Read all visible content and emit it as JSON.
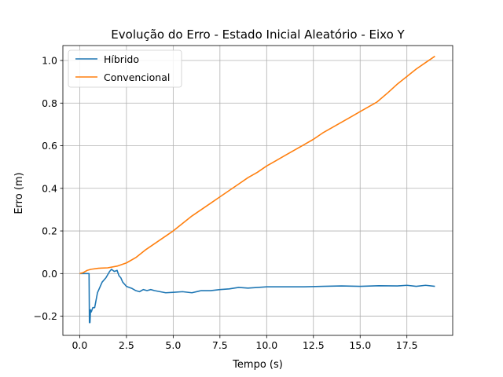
{
  "chart_data": {
    "type": "line",
    "title": "Evolução do Erro - Estado Inicial Aleatório - Eixo Y",
    "xlabel": "Tempo (s)",
    "ylabel": "Erro (m)",
    "xlim": [
      -0.9,
      19.95
    ],
    "ylim": [
      -0.29,
      1.07
    ],
    "xticks": [
      0.0,
      2.5,
      5.0,
      7.5,
      10.0,
      12.5,
      15.0,
      17.5
    ],
    "xtick_labels": [
      "0.0",
      "2.5",
      "5.0",
      "7.5",
      "10.0",
      "12.5",
      "15.0",
      "17.5"
    ],
    "yticks": [
      -0.2,
      0.0,
      0.2,
      0.4,
      0.6,
      0.8,
      1.0
    ],
    "ytick_labels": [
      "−0.2",
      "0.0",
      "0.2",
      "0.4",
      "0.6",
      "0.8",
      "1.0"
    ],
    "grid": true,
    "legend": "top-left",
    "series": [
      {
        "name": "Híbrido",
        "color": "#1f77b4",
        "x": [
          0.0,
          0.35,
          0.5,
          0.52,
          0.55,
          0.58,
          0.62,
          0.7,
          0.8,
          0.95,
          1.05,
          1.2,
          1.4,
          1.6,
          1.7,
          1.85,
          2.0,
          2.1,
          2.2,
          2.3,
          2.4,
          2.5,
          2.65,
          2.8,
          3.0,
          3.2,
          3.4,
          3.6,
          3.8,
          4.0,
          4.3,
          4.6,
          5.0,
          5.5,
          6.0,
          6.5,
          7.0,
          7.5,
          8.0,
          8.5,
          9.0,
          10.0,
          11.0,
          12.0,
          13.0,
          14.0,
          15.0,
          16.0,
          17.0,
          17.5,
          18.0,
          18.5,
          19.0
        ],
        "y": [
          0.0,
          0.0,
          0.0,
          -0.23,
          -0.23,
          -0.17,
          -0.18,
          -0.16,
          -0.16,
          -0.09,
          -0.07,
          -0.04,
          -0.02,
          0.01,
          0.02,
          0.01,
          0.015,
          -0.01,
          -0.02,
          -0.04,
          -0.05,
          -0.06,
          -0.065,
          -0.07,
          -0.08,
          -0.085,
          -0.075,
          -0.08,
          -0.075,
          -0.08,
          -0.085,
          -0.09,
          -0.088,
          -0.085,
          -0.09,
          -0.08,
          -0.08,
          -0.075,
          -0.072,
          -0.065,
          -0.068,
          -0.062,
          -0.062,
          -0.062,
          -0.06,
          -0.058,
          -0.06,
          -0.057,
          -0.058,
          -0.055,
          -0.06,
          -0.055,
          -0.06
        ]
      },
      {
        "name": "Convencional",
        "color": "#ff7f0e",
        "x": [
          0.0,
          0.2,
          0.4,
          0.6,
          1.0,
          1.5,
          2.0,
          2.5,
          3.0,
          3.5,
          4.0,
          4.5,
          5.0,
          5.5,
          6.0,
          6.5,
          7.0,
          7.5,
          8.0,
          8.5,
          9.0,
          9.5,
          10.0,
          10.5,
          11.0,
          11.5,
          12.0,
          12.5,
          13.0,
          13.5,
          14.0,
          14.5,
          15.0,
          15.5,
          15.9,
          16.5,
          17.0,
          17.5,
          18.0,
          18.5,
          19.0
        ],
        "y": [
          0.0,
          0.005,
          0.015,
          0.02,
          0.025,
          0.027,
          0.035,
          0.05,
          0.075,
          0.11,
          0.14,
          0.17,
          0.2,
          0.235,
          0.27,
          0.3,
          0.33,
          0.36,
          0.39,
          0.42,
          0.45,
          0.475,
          0.505,
          0.53,
          0.555,
          0.58,
          0.605,
          0.63,
          0.66,
          0.685,
          0.71,
          0.735,
          0.76,
          0.785,
          0.805,
          0.85,
          0.89,
          0.925,
          0.96,
          0.99,
          1.02
        ]
      }
    ]
  }
}
